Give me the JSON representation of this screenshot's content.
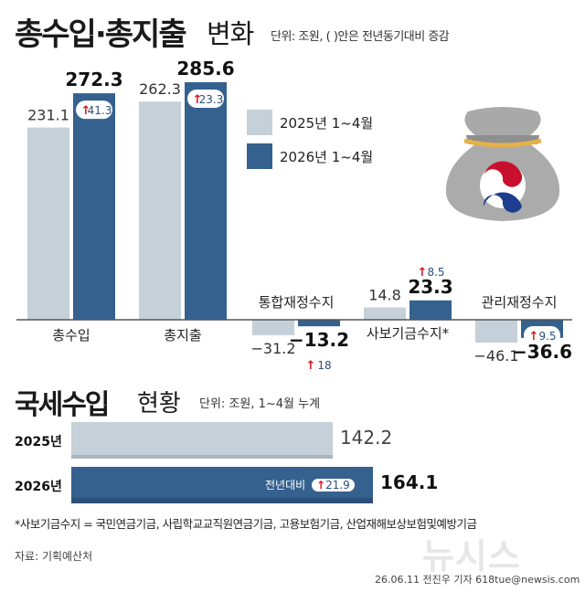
{
  "header": {
    "title_bold": "총수입·총지출",
    "title_light": "변화",
    "unit_note": "단위: 조원, ( )안은 전년동기대비 증감"
  },
  "legend": {
    "items": [
      {
        "label": "2025년 1~4월",
        "color": "#c5d0d8"
      },
      {
        "label": "2026년 1~4월",
        "color": "#35618f"
      }
    ]
  },
  "colors": {
    "prev": "#c5d0d8",
    "curr": "#35618f",
    "curr_dark": "#2c4f78",
    "arrow_red": "#d7141a",
    "axis": "#555555"
  },
  "chart_data": [
    {
      "type": "bar",
      "categories": [
        "총수입",
        "총지출",
        "통합재정수지",
        "사보기금수지*",
        "관리재정수지"
      ],
      "series": [
        {
          "name": "2025년 1~4월",
          "values": [
            231.1,
            262.3,
            -31.2,
            14.8,
            -46.1
          ],
          "labels": [
            "231.1",
            "262.3",
            "-31.2",
            "14.8",
            "-46.1"
          ]
        },
        {
          "name": "2026년 1~4월",
          "values": [
            272.3,
            285.6,
            -13.2,
            23.3,
            -36.6
          ],
          "labels": [
            "272.3",
            "285.6",
            "-13.2",
            "23.3",
            "-36.6"
          ]
        }
      ],
      "yoy_change": [
        "41.3",
        "23.3",
        "18",
        "8.5",
        "9.5"
      ],
      "yoy_direction": "up",
      "ylim": [
        -50,
        290
      ]
    },
    {
      "type": "bar",
      "orientation": "horizontal",
      "title": "국세수입 현황",
      "unit_note": "단위: 조원, 1~4월 누계",
      "categories": [
        "2025년",
        "2026년"
      ],
      "values": [
        142.2,
        164.1
      ],
      "labels": [
        "142.2",
        "164.1"
      ],
      "yoy_note": "전년대비",
      "yoy_change": "21.9"
    }
  ],
  "tax_section": {
    "title_bold": "국세수입",
    "title_light": "현황",
    "unit_note": "단위: 조원, 1~4월 누계",
    "rows": [
      {
        "label": "2025년",
        "value": "142.2"
      },
      {
        "label": "2026년",
        "value": "164.1",
        "note": "전년대비",
        "change": "21.9"
      }
    ]
  },
  "footnote": "*사보기금수지 = 국민연금기금, 사립학교교직원연금기금, 고용보험기금, 산업재해보상보험및예방기금",
  "source": "자료: 기획예산처",
  "credit": "26.06.11  전진우 기자  618tue@newsis.com",
  "watermark": "뉴시스",
  "icons": {
    "money_bag": "money-bag-with-taegeuk"
  }
}
